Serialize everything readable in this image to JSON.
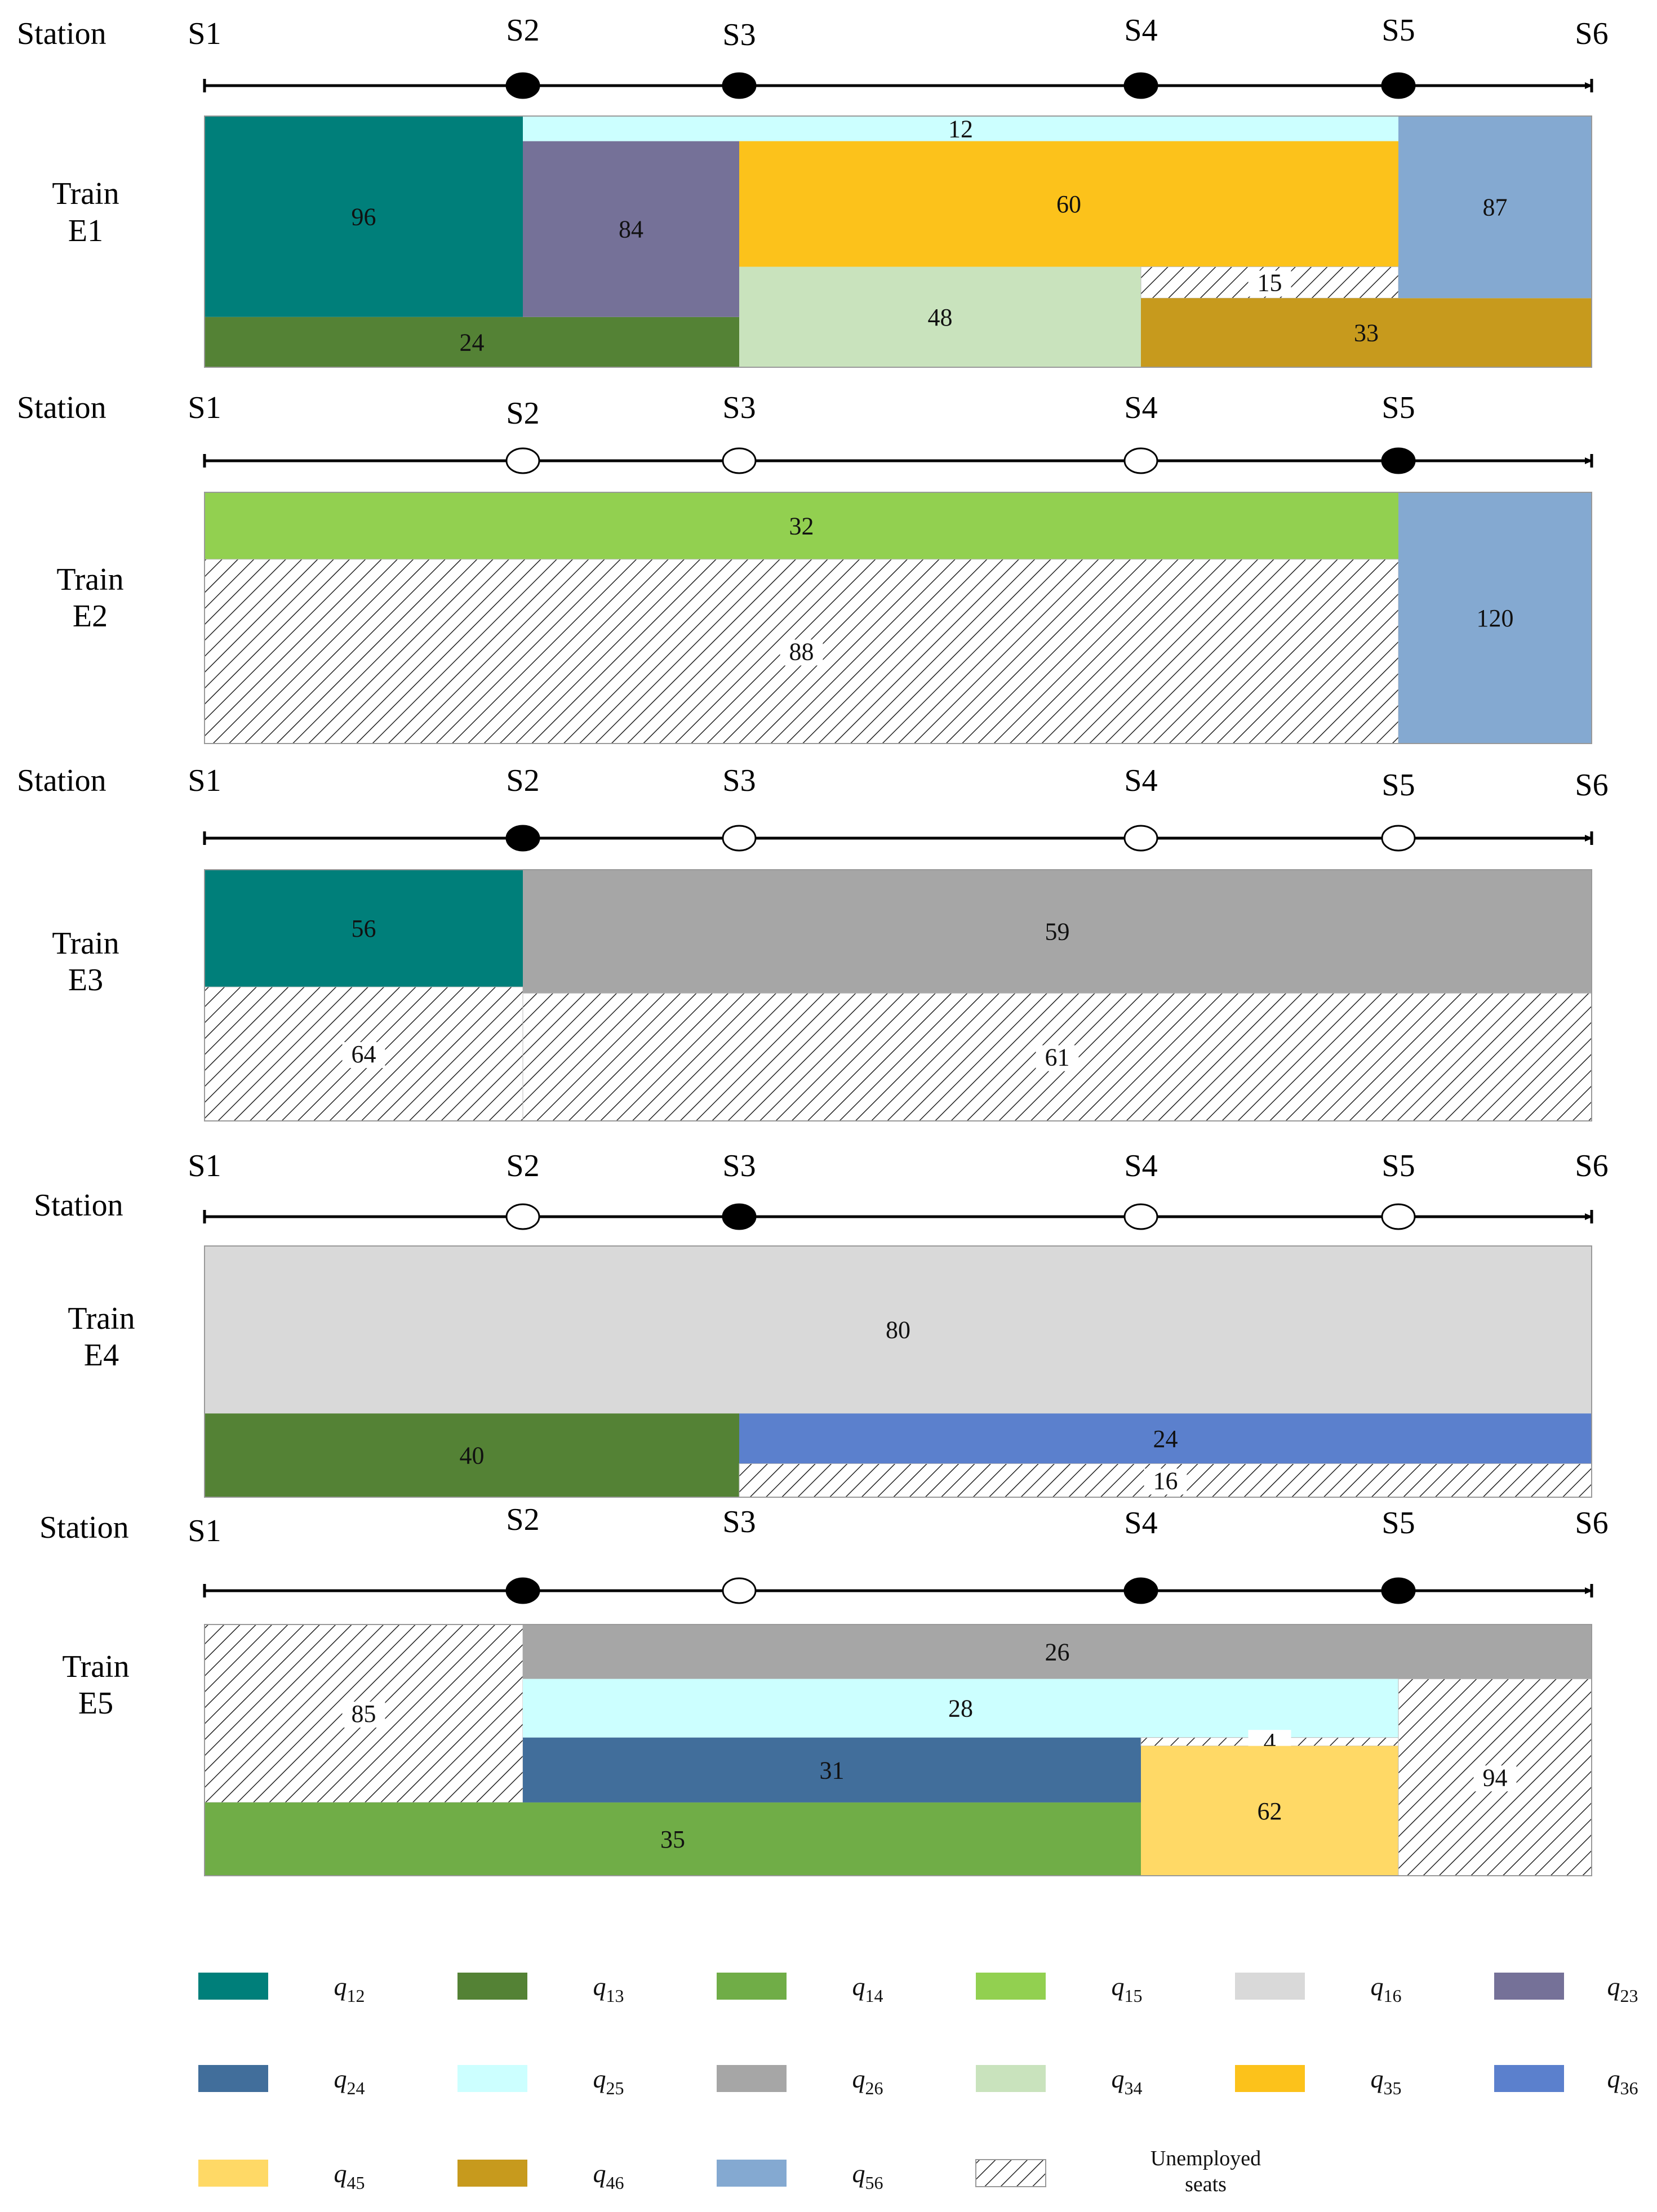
{
  "station_label": "Station",
  "station_names": [
    "S1",
    "S2",
    "S3",
    "S4",
    "S5",
    "S6"
  ],
  "trains": [
    {
      "name_line1": "Train",
      "name_line2": "E1",
      "stops": [
        "S2",
        "S3",
        "S4",
        "S5"
      ],
      "capacity": 120,
      "segments": [
        {
          "key": "q12",
          "from": "S1",
          "to": "S2",
          "base": 24,
          "value": 96,
          "label": "96"
        },
        {
          "key": "q13",
          "from": "S1",
          "to": "S3",
          "base": 0,
          "value": 24,
          "label": "24"
        },
        {
          "key": "q23",
          "from": "S2",
          "to": "S3",
          "base": 24,
          "value": 84,
          "label": "84"
        },
        {
          "key": "q25",
          "from": "S2",
          "to": "S5",
          "base": 108,
          "value": 12,
          "label": "12"
        },
        {
          "key": "q34",
          "from": "S3",
          "to": "S4",
          "base": 0,
          "value": 48,
          "label": "48"
        },
        {
          "key": "q35",
          "from": "S3",
          "to": "S5",
          "base": 48,
          "value": 60,
          "label": "60"
        },
        {
          "key": "unemployed",
          "from": "S4",
          "to": "S5",
          "base": 33,
          "value": 15,
          "label": "15"
        },
        {
          "key": "q46",
          "from": "S4",
          "to": "S6",
          "base": 0,
          "value": 33,
          "label": "33"
        },
        {
          "key": "q56",
          "from": "S5",
          "to": "S6",
          "base": 33,
          "value": 87,
          "label": "87"
        }
      ]
    },
    {
      "name_line1": "Train",
      "name_line2": "E2",
      "stops": [
        "S5"
      ],
      "capacity": 120,
      "segments": [
        {
          "key": "q15",
          "from": "S1",
          "to": "S5",
          "base": 88,
          "value": 32,
          "label": "32"
        },
        {
          "key": "unemployed",
          "from": "S1",
          "to": "S5",
          "base": 0,
          "value": 88,
          "label": "88"
        },
        {
          "key": "q56",
          "from": "S5",
          "to": "S6",
          "base": 0,
          "value": 120,
          "label": "120"
        }
      ]
    },
    {
      "name_line1": "Train",
      "name_line2": "E3",
      "stops": [
        "S2"
      ],
      "capacity": 120,
      "segments": [
        {
          "key": "q12",
          "from": "S1",
          "to": "S2",
          "base": 64,
          "value": 56,
          "label": "56"
        },
        {
          "key": "unemployed",
          "from": "S1",
          "to": "S2",
          "base": 0,
          "value": 64,
          "label": "64"
        },
        {
          "key": "q26",
          "from": "S2",
          "to": "S6",
          "base": 61,
          "value": 59,
          "label": "59"
        },
        {
          "key": "unemployed",
          "from": "S2",
          "to": "S6",
          "base": 0,
          "value": 61,
          "label": "61"
        }
      ]
    },
    {
      "name_line1": "Train",
      "name_line2": "E4",
      "stops": [
        "S3"
      ],
      "capacity": 120,
      "segments": [
        {
          "key": "q16",
          "from": "S1",
          "to": "S6",
          "base": 40,
          "value": 80,
          "label": "80"
        },
        {
          "key": "q13",
          "from": "S1",
          "to": "S3",
          "base": 0,
          "value": 40,
          "label": "40"
        },
        {
          "key": "q36",
          "from": "S3",
          "to": "S6",
          "base": 16,
          "value": 24,
          "label": "24"
        },
        {
          "key": "unemployed",
          "from": "S3",
          "to": "S6",
          "base": 0,
          "value": 16,
          "label": "16"
        }
      ]
    },
    {
      "name_line1": "Train",
      "name_line2": "E5",
      "stops": [
        "S2",
        "S4",
        "S5"
      ],
      "capacity": 120,
      "segments": [
        {
          "key": "unemployed",
          "from": "S1",
          "to": "S2",
          "base": 35,
          "value": 85,
          "label": "85"
        },
        {
          "key": "q14",
          "from": "S1",
          "to": "S4",
          "base": 0,
          "value": 35,
          "label": "35"
        },
        {
          "key": "q26",
          "from": "S2",
          "to": "S6",
          "base": 94,
          "value": 26,
          "label": "26"
        },
        {
          "key": "q25",
          "from": "S2",
          "to": "S5",
          "base": 66,
          "value": 28,
          "label": "28"
        },
        {
          "key": "q24",
          "from": "S2",
          "to": "S4",
          "base": 35,
          "value": 31,
          "label": "31"
        },
        {
          "key": "unemployed",
          "from": "S4",
          "to": "S5",
          "base": 62,
          "value": 4,
          "label": "4"
        },
        {
          "key": "q45",
          "from": "S4",
          "to": "S5",
          "base": 0,
          "value": 62,
          "label": "62"
        },
        {
          "key": "unemployed",
          "from": "S5",
          "to": "S6",
          "base": 0,
          "value": 94,
          "label": "94"
        }
      ]
    }
  ],
  "colors": {
    "q12": "#007F7A",
    "q13": "#548235",
    "q14": "#70AD47",
    "q15": "#92D050",
    "q16": "#D9D9D9",
    "q23": "#757198",
    "q24": "#416E9B",
    "q25": "#CCFFFF",
    "q26": "#A6A6A6",
    "q34": "#C9E3BD",
    "q35": "#FCC21B",
    "q36": "#5B80CD",
    "q45": "#FFD966",
    "q46": "#C79A1D",
    "q56": "#84A9D1"
  },
  "legend": [
    {
      "key": "q12",
      "sub": "12"
    },
    {
      "key": "q13",
      "sub": "13"
    },
    {
      "key": "q14",
      "sub": "14"
    },
    {
      "key": "q15",
      "sub": "15"
    },
    {
      "key": "q16",
      "sub": "16"
    },
    {
      "key": "q23",
      "sub": "23"
    },
    {
      "key": "q24",
      "sub": "24"
    },
    {
      "key": "q25",
      "sub": "25"
    },
    {
      "key": "q26",
      "sub": "26"
    },
    {
      "key": "q34",
      "sub": "34"
    },
    {
      "key": "q35",
      "sub": "35"
    },
    {
      "key": "q36",
      "sub": "36"
    },
    {
      "key": "q45",
      "sub": "45"
    },
    {
      "key": "q46",
      "sub": "46"
    },
    {
      "key": "q56",
      "sub": "56"
    },
    {
      "key": "unemployed",
      "line1": "Unemployed",
      "line2": "seats"
    }
  ],
  "legend_symbol": "q"
}
